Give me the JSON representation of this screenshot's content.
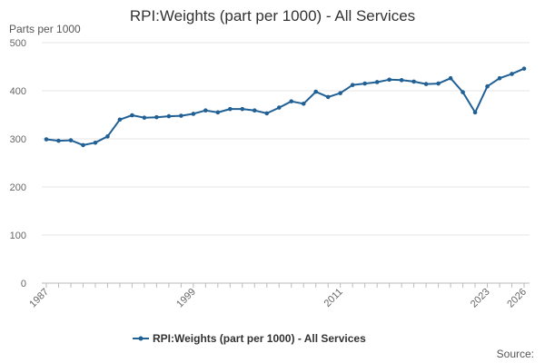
{
  "chart_data": {
    "type": "line",
    "title": "RPI:Weights (part per 1000) - All Services",
    "ylabel": "Parts per 1000",
    "ylim": [
      0,
      500
    ],
    "yticks": [
      0,
      100,
      200,
      300,
      400,
      500
    ],
    "xlim": [
      1987,
      2026
    ],
    "xtick_labels": [
      "1987",
      "1999",
      "2011",
      "2023",
      "2026"
    ],
    "x": [
      1987,
      1988,
      1989,
      1990,
      1991,
      1992,
      1993,
      1994,
      1995,
      1996,
      1997,
      1998,
      1999,
      2000,
      2001,
      2002,
      2003,
      2004,
      2005,
      2006,
      2007,
      2008,
      2009,
      2010,
      2011,
      2012,
      2013,
      2014,
      2015,
      2016,
      2017,
      2018,
      2019,
      2020,
      2021,
      2022,
      2023,
      2024,
      2025,
      2026
    ],
    "series": [
      {
        "name": "RPI:Weights (part per 1000) - All Services",
        "color": "#206095",
        "values": [
          299,
          296,
          297,
          287,
          292,
          305,
          340,
          349,
          344,
          345,
          347,
          348,
          352,
          359,
          355,
          362,
          362,
          359,
          353,
          365,
          378,
          373,
          398,
          387,
          395,
          412,
          415,
          418,
          423,
          422,
          419,
          414,
          415,
          426,
          397,
          355,
          409,
          426,
          435,
          446
        ]
      }
    ],
    "legend_position": "bottom-center",
    "source_label": "Source:"
  }
}
